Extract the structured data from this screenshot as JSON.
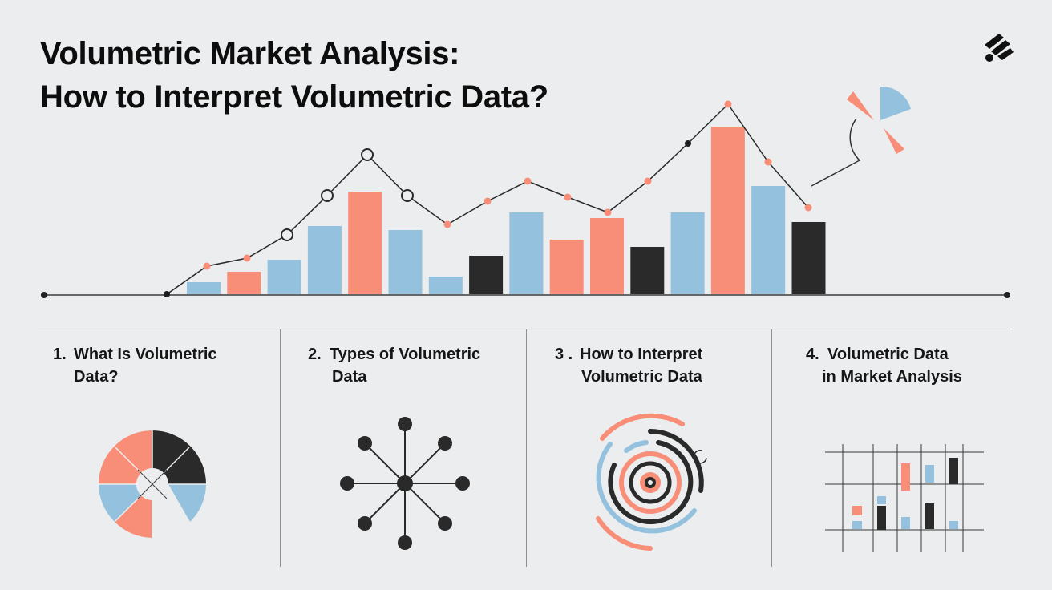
{
  "title": {
    "line1": "Volumetric Market Analysis:",
    "line2": "How to Interpret Volumetric Data?"
  },
  "logo": {
    "icon": "arrow-burst-logo-icon"
  },
  "palette": {
    "salmon": "#f88e78",
    "blue": "#94c1dd",
    "dark": "#2a2a2a",
    "background": "#ebedef",
    "rule": "#8f8f8f"
  },
  "hero_chart": {
    "type": "bar",
    "series": [
      {
        "color": "blue",
        "value": 15
      },
      {
        "color": "salmon",
        "value": 28
      },
      {
        "color": "blue",
        "value": 43
      },
      {
        "color": "blue",
        "value": 85
      },
      {
        "color": "salmon",
        "value": 128
      },
      {
        "color": "blue",
        "value": 80
      },
      {
        "color": "blue",
        "value": 22
      },
      {
        "color": "dark",
        "value": 48
      },
      {
        "color": "blue",
        "value": 102
      },
      {
        "color": "salmon",
        "value": 68
      },
      {
        "color": "salmon",
        "value": 95
      },
      {
        "color": "dark",
        "value": 59
      },
      {
        "color": "blue",
        "value": 102
      },
      {
        "color": "salmon",
        "value": 209
      },
      {
        "color": "blue",
        "value": 135
      },
      {
        "color": "dark",
        "value": 90
      }
    ],
    "trend_line": [
      {
        "style": "dark-dot",
        "value": 24
      },
      {
        "style": "salmon-dot",
        "value": 59
      },
      {
        "style": "salmon-dot",
        "value": 69
      },
      {
        "style": "ring",
        "value": 98
      },
      {
        "style": "ring",
        "value": 147
      },
      {
        "style": "ring",
        "value": 198
      },
      {
        "style": "ring",
        "value": 147
      },
      {
        "style": "salmon-dot",
        "value": 111
      },
      {
        "style": "salmon-dot",
        "value": 140
      },
      {
        "style": "salmon-dot",
        "value": 165
      },
      {
        "style": "salmon-dot",
        "value": 145
      },
      {
        "style": "salmon-dot",
        "value": 126
      },
      {
        "style": "salmon-dot",
        "value": 165
      },
      {
        "style": "dark-dot",
        "value": 212
      },
      {
        "style": "salmon-dot",
        "value": 261
      },
      {
        "style": "salmon-dot",
        "value": 189
      },
      {
        "style": "salmon-dot",
        "value": 132
      }
    ]
  },
  "sections": [
    {
      "number": "1.",
      "title": "What Is Volumetric",
      "title2": "Data?",
      "icon": "segmented-donut-icon"
    },
    {
      "number": "2.",
      "title": "Types of Volumetric",
      "title2": "Data",
      "icon": "hub-network-icon"
    },
    {
      "number": "3 .",
      "title": "How to Interpret",
      "title2": "Volumetric Data",
      "icon": "concentric-rings-icon"
    },
    {
      "number": "4.",
      "title": "Volumetric Data",
      "title2": "in Market Analysis",
      "icon": "grid-bar-chart-icon"
    }
  ]
}
